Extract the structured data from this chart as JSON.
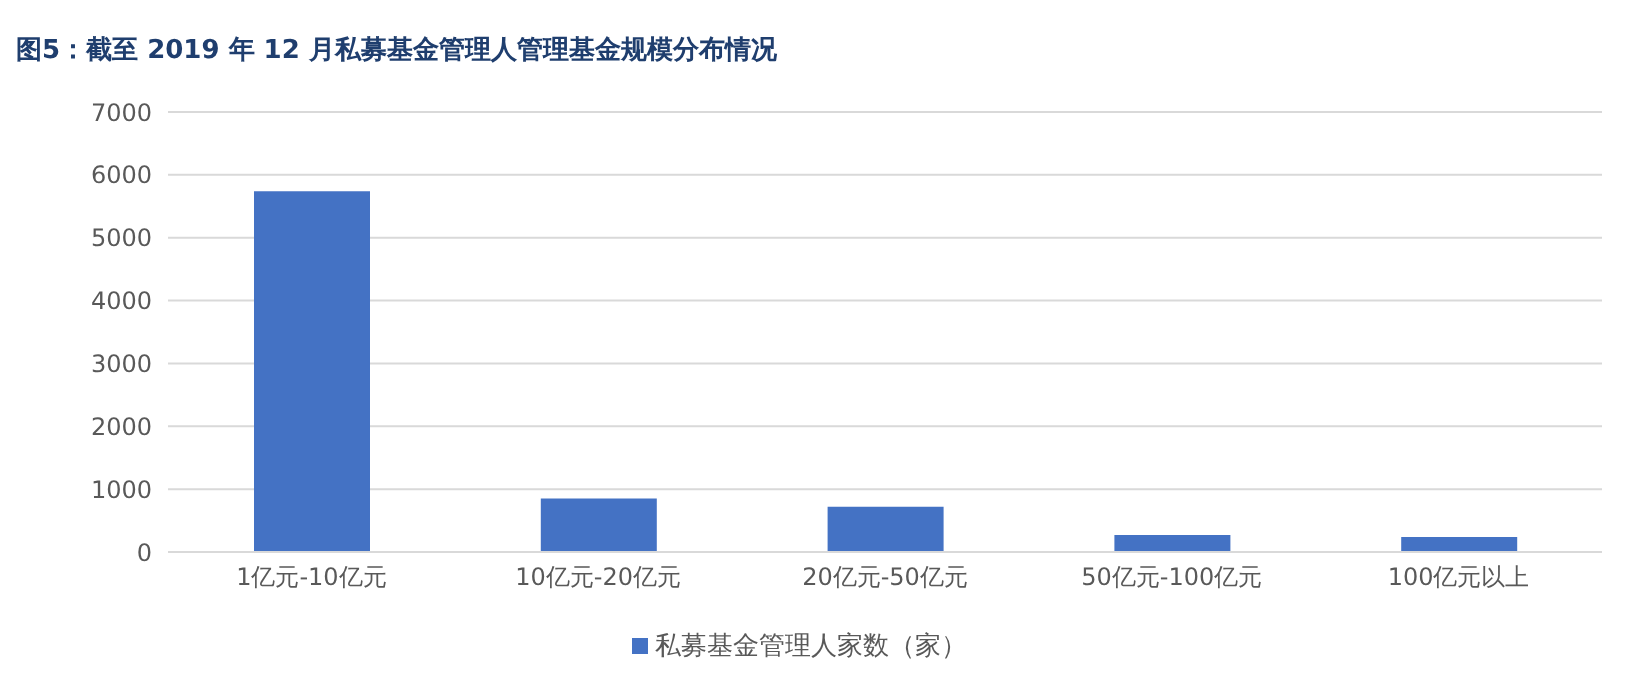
{
  "chart_data": {
    "type": "bar",
    "title": "图5：截至 2019 年 12 月私募基金管理人管理基金规模分布情况",
    "categories": [
      "1亿元-10亿元",
      "10亿元-20亿元",
      "20亿元-50亿元",
      "50亿元-100亿元",
      "100亿元以上"
    ],
    "series": [
      {
        "name": "私募基金管理人家数（家）",
        "color": "#4472c4",
        "values": [
          5740,
          850,
          720,
          270,
          240
        ]
      }
    ],
    "ylim": [
      0,
      7000
    ],
    "yticks": [
      0,
      1000,
      2000,
      3000,
      4000,
      5000,
      6000,
      7000
    ],
    "grid": "y",
    "legend": "bottom"
  }
}
